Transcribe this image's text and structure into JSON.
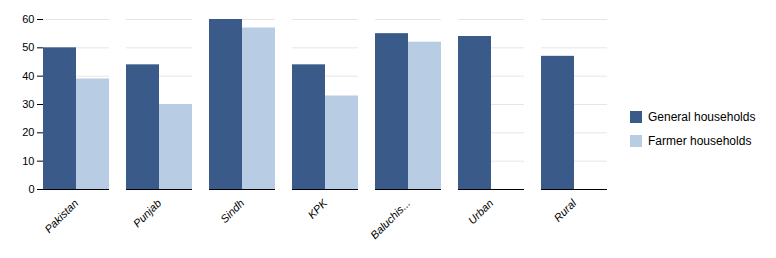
{
  "chart_data": {
    "type": "bar",
    "categories": [
      "Pakistan",
      "Punjab",
      "Sindh",
      "KPK",
      "Baluchis...",
      "Urban",
      "Rural"
    ],
    "series": [
      {
        "name": "General households",
        "color": "#3A5A8A",
        "values": [
          50,
          44,
          60,
          44,
          55,
          54,
          47
        ]
      },
      {
        "name": "Farmer households",
        "color": "#B8CCE4",
        "values": [
          39,
          30,
          57,
          33,
          52,
          null,
          null
        ]
      }
    ],
    "ylim": [
      0,
      60
    ],
    "yticks": [
      0,
      10,
      20,
      30,
      40,
      50,
      60
    ],
    "grid": true,
    "legend": "right"
  }
}
